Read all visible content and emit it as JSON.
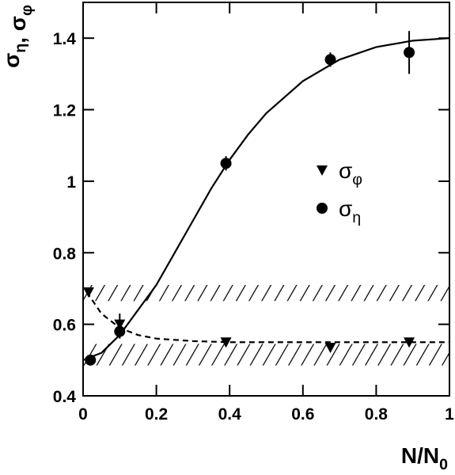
{
  "chart_data": {
    "type": "scatter",
    "x_label": [
      {
        "text": "N/N",
        "sub": "0"
      }
    ],
    "y_label": [
      {
        "text": "σ",
        "sub": "η"
      },
      {
        "text": ", σ",
        "sub": "φ"
      }
    ],
    "xlim": [
      0,
      1
    ],
    "ylim": [
      0.4,
      1.5
    ],
    "xticks": [
      0,
      0.2,
      0.4,
      0.6,
      0.8,
      1
    ],
    "yticks": [
      0.4,
      0.6,
      0.8,
      1,
      1.2,
      1.4
    ],
    "series": [
      {
        "name": "σ",
        "sub": "φ",
        "marker": "triangle",
        "color": "#000000",
        "x": [
          0.015,
          0.1,
          0.39,
          0.675,
          0.89
        ],
        "values": [
          0.69,
          0.6,
          0.55,
          0.535,
          0.55
        ],
        "errors": [
          0.01,
          0.03,
          0.01,
          0.01,
          0.01
        ]
      },
      {
        "name": "σ",
        "sub": "η",
        "marker": "circle",
        "color": "#000000",
        "x": [
          0.02,
          0.1,
          0.39,
          0.675,
          0.89
        ],
        "values": [
          0.5,
          0.58,
          1.05,
          1.34,
          1.36
        ],
        "errors": [
          0.01,
          0.02,
          0.02,
          0.02,
          0.06
        ]
      }
    ],
    "curves": [
      {
        "style": "solid",
        "x": [
          0,
          0.05,
          0.1,
          0.15,
          0.2,
          0.25,
          0.3,
          0.35,
          0.4,
          0.45,
          0.5,
          0.6,
          0.7,
          0.8,
          0.9,
          1
        ],
        "values": [
          0.5,
          0.52,
          0.57,
          0.64,
          0.71,
          0.8,
          0.89,
          0.98,
          1.06,
          1.13,
          1.19,
          1.28,
          1.34,
          1.375,
          1.393,
          1.4
        ]
      },
      {
        "style": "dashed",
        "x": [
          0.01,
          0.05,
          0.1,
          0.15,
          0.2,
          0.3,
          0.4,
          0.6,
          1
        ],
        "values": [
          0.69,
          0.63,
          0.59,
          0.57,
          0.56,
          0.553,
          0.55,
          0.55,
          0.55
        ]
      }
    ],
    "bands": [
      {
        "y0": 0.665,
        "y1": 0.71
      },
      {
        "y0": 0.485,
        "y1": 0.545
      }
    ]
  }
}
